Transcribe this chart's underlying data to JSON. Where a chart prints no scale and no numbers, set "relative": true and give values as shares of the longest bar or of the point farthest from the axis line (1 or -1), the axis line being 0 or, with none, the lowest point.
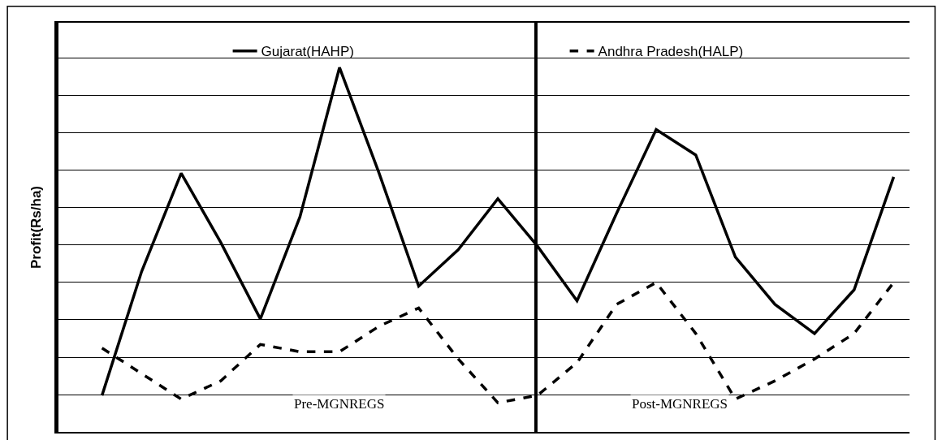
{
  "chart_data": {
    "type": "line",
    "ylabel": "Profit(Rs/ha)",
    "relative": true,
    "categories": [
      null,
      null,
      null,
      null,
      null,
      null,
      null,
      null,
      null,
      null,
      null,
      null,
      null,
      null,
      null,
      null,
      null,
      null,
      null,
      null,
      null
    ],
    "series": [
      {
        "name": "Gujarat(HAHP)",
        "color": "#000000",
        "line_style": "solid",
        "values": [
          0.1,
          0.44,
          0.71,
          0.52,
          0.31,
          0.59,
          1.0,
          0.71,
          0.4,
          0.5,
          0.64,
          0.51,
          0.36,
          0.6,
          0.83,
          0.76,
          0.48,
          0.35,
          0.27,
          0.39,
          0.7
        ]
      },
      {
        "name": "Andhra Pradesh(HALP)",
        "color": "#000000",
        "line_style": "dashed",
        "values": [
          0.23,
          0.16,
          0.09,
          0.14,
          0.24,
          0.22,
          0.22,
          0.29,
          0.34,
          0.2,
          0.08,
          0.1,
          0.19,
          0.35,
          0.41,
          0.27,
          0.09,
          0.14,
          0.2,
          0.27,
          0.41
        ]
      }
    ],
    "annotations": [
      "Pre-MGNREGS",
      "Post-MGNREGS"
    ],
    "grid": true,
    "legend": "top",
    "marker": "none"
  }
}
